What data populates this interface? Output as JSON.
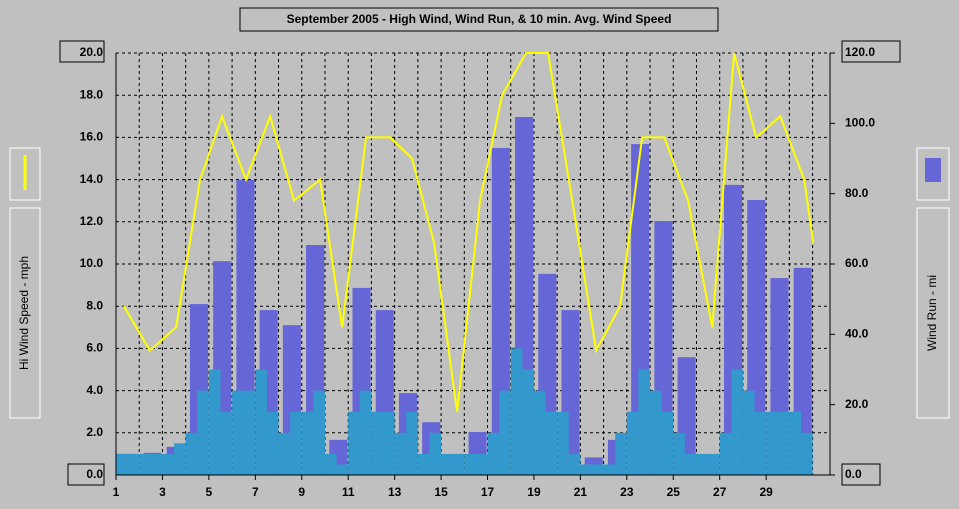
{
  "chart_data": {
    "type": "combo",
    "title": "September 2005 - High Wind, Wind Run, & 10 min. Avg. Wind Speed",
    "y_label": "Hi Wind Speed - mph",
    "y2_label": "Wind Run - mi",
    "xlim": [
      1,
      31.75
    ],
    "xticks": [
      1,
      3,
      5,
      7,
      9,
      11,
      13,
      15,
      17,
      19,
      21,
      23,
      25,
      27,
      29
    ],
    "xminor_ticks": [
      2,
      4,
      6,
      8,
      10,
      12,
      14,
      16,
      18,
      20,
      22,
      24,
      26,
      28,
      30,
      31
    ],
    "ylim": [
      0,
      20
    ],
    "yticks": [
      {
        "value": 0,
        "label": "0.0"
      },
      {
        "value": 2,
        "label": "2.0"
      },
      {
        "value": 4,
        "label": "4.0"
      },
      {
        "value": 6,
        "label": "6.0"
      },
      {
        "value": 8,
        "label": "8.0"
      },
      {
        "value": 10,
        "label": "10.0"
      },
      {
        "value": 12,
        "label": "12.0"
      },
      {
        "value": 14,
        "label": "14.0"
      },
      {
        "value": 16,
        "label": "16.0"
      },
      {
        "value": 18,
        "label": "18.0"
      },
      {
        "value": 20,
        "label": "20.0"
      }
    ],
    "y2lim": [
      0,
      120
    ],
    "y2ticks": [
      {
        "value": 0,
        "label": "0.0"
      },
      {
        "value": 20,
        "label": "20.0"
      },
      {
        "value": 40,
        "label": "40.0"
      },
      {
        "value": 60,
        "label": "60.0"
      },
      {
        "value": 80,
        "label": "80.0"
      },
      {
        "value": 100,
        "label": "100.0"
      },
      {
        "value": 120,
        "label": "120.0"
      }
    ],
    "grid": true,
    "wind_run": {
      "color": "#6666d6",
      "axis": "y2",
      "x": [
        1,
        2,
        3,
        4,
        5,
        6,
        7,
        8,
        9,
        10,
        11,
        12,
        13,
        14,
        15,
        16,
        17,
        18,
        19,
        20,
        21,
        22,
        23,
        24,
        25,
        26,
        27,
        28,
        29,
        30
      ],
      "values": [
        6,
        6.3,
        8,
        48.6,
        60.8,
        83.9,
        46.9,
        42.6,
        65.4,
        10,
        53.2,
        46.9,
        23.3,
        15,
        5.7,
        12.2,
        93,
        101.8,
        57.2,
        46.9,
        5,
        10,
        94.1,
        72.2,
        33.5,
        5.7,
        82.5,
        78.2,
        56,
        58.9
      ]
    },
    "avg_speed": {
      "color": "#3399cc",
      "x": [
        1,
        1.5,
        2,
        2.5,
        3,
        3.5,
        4,
        4.5,
        5,
        5.5,
        6,
        6.5,
        7,
        7.5,
        8,
        8.5,
        9,
        9.5,
        10,
        10.5,
        11,
        11.5,
        12,
        12.5,
        13,
        13.5,
        14,
        14.5,
        15,
        15.5,
        16,
        16.5,
        17,
        17.5,
        18,
        18.5,
        19,
        19.5,
        20,
        20.5,
        21,
        21.5,
        22,
        22.5,
        23,
        23.5,
        24,
        24.5,
        25,
        25.5,
        26,
        26.5,
        27,
        27.5,
        28,
        28.5,
        29,
        29.5,
        30,
        30.5
      ],
      "values": [
        1,
        1,
        1,
        1,
        1,
        1.5,
        2,
        4,
        5,
        3,
        4,
        4,
        5,
        3,
        2,
        3,
        3,
        4,
        1,
        0.5,
        3,
        4,
        3,
        3,
        2,
        3,
        1,
        2,
        1,
        1,
        1,
        1,
        2,
        4,
        6,
        5,
        4,
        3,
        3,
        1,
        0.5,
        0.5,
        0.5,
        2,
        3,
        5,
        4,
        3,
        2,
        1,
        1,
        1,
        2,
        5,
        4,
        3,
        3,
        3,
        3,
        2
      ]
    },
    "high_wind": {
      "color": "#ffff00",
      "x": [
        1.34,
        2.46,
        3.59,
        4.62,
        5.57,
        6.6,
        7.64,
        8.67,
        9.79,
        10.74,
        11.77,
        12.81,
        13.75,
        14.7,
        15.69,
        16.68,
        17.63,
        18.66,
        19.61,
        20.65,
        21.68,
        22.71,
        23.66,
        24.61,
        25.64,
        26.68,
        27.62,
        28.57,
        29.61,
        30.64,
        31.03
      ],
      "values": [
        8,
        5.9,
        7,
        14,
        17,
        14,
        17,
        13,
        14,
        7,
        16,
        16,
        15,
        11,
        3,
        13,
        18,
        20,
        20,
        13,
        5.9,
        8,
        16,
        16,
        13,
        7,
        20,
        16,
        17,
        14,
        11
      ]
    }
  }
}
